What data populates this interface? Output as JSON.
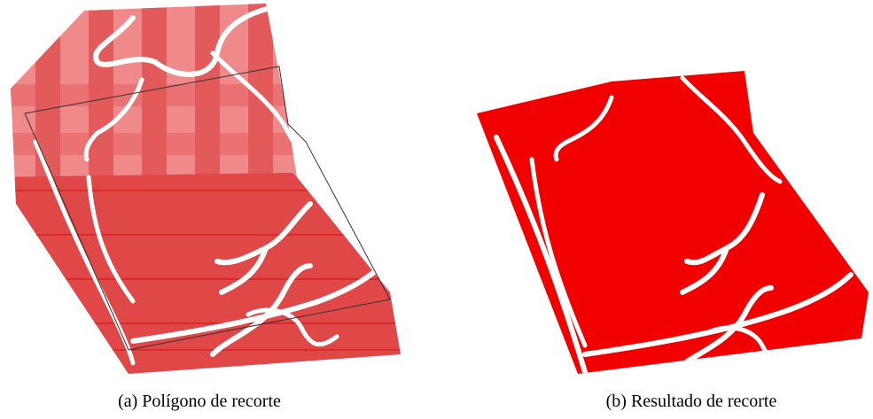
{
  "figure": {
    "subfigures": [
      {
        "caption": "(a) Polígono de recorte"
      },
      {
        "caption": "(b) Resultado de recorte"
      }
    ]
  }
}
